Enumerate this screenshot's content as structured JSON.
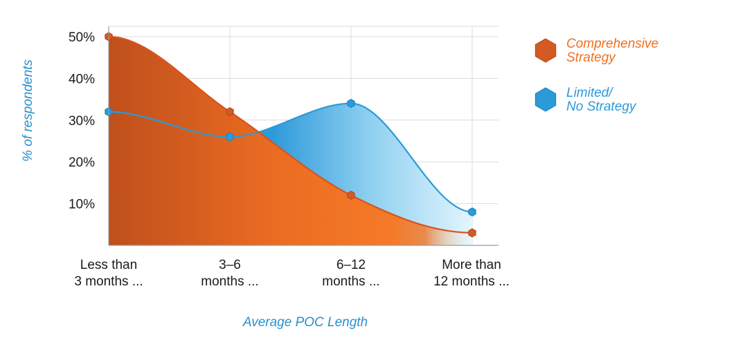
{
  "chart_data": {
    "type": "area",
    "title": "",
    "xlabel": "Average POC Length",
    "ylabel": "% of respondents",
    "ylim": [
      0,
      50
    ],
    "yticks": [
      {
        "value": 10,
        "label": "10%"
      },
      {
        "value": 20,
        "label": "20%"
      },
      {
        "value": 30,
        "label": "30%"
      },
      {
        "value": 40,
        "label": "40%"
      },
      {
        "value": 50,
        "label": "50%"
      }
    ],
    "categories": [
      [
        "Less than",
        "3 months ..."
      ],
      [
        "3–6",
        "months ..."
      ],
      [
        "6–12",
        "months ..."
      ],
      [
        "More than",
        "12 months ..."
      ]
    ],
    "series": [
      {
        "name": [
          "Comprehensive",
          "Strategy"
        ],
        "values": [
          50,
          32,
          12,
          3
        ],
        "color": "#f07020"
      },
      {
        "name": [
          "Limited/",
          "No Strategy"
        ],
        "values": [
          32,
          26,
          34,
          8
        ],
        "color": "#2a9ad8"
      }
    ],
    "grid": true,
    "legend": "right"
  }
}
